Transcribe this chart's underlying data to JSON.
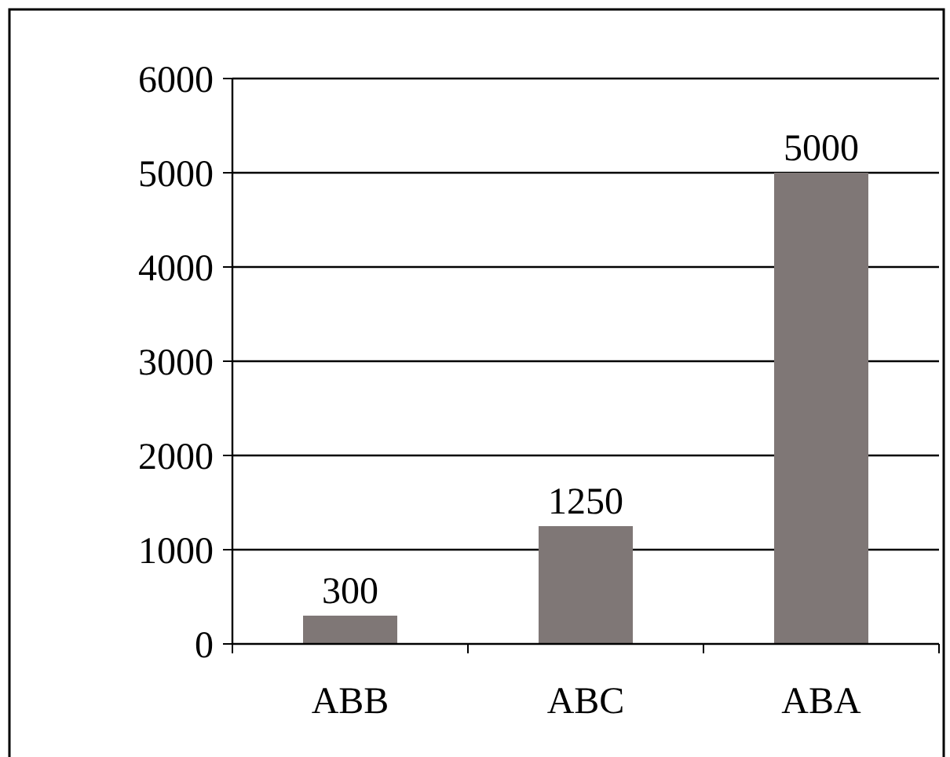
{
  "chart_data": {
    "type": "bar",
    "categories": [
      "ABB",
      "ABC",
      "ABA"
    ],
    "values": [
      300,
      1250,
      5000
    ],
    "color": "#7f7776",
    "ylim": [
      0,
      6000
    ],
    "yticks": [
      0,
      1000,
      2000,
      3000,
      4000,
      5000,
      6000
    ],
    "grid": "y",
    "data_labels": true
  }
}
